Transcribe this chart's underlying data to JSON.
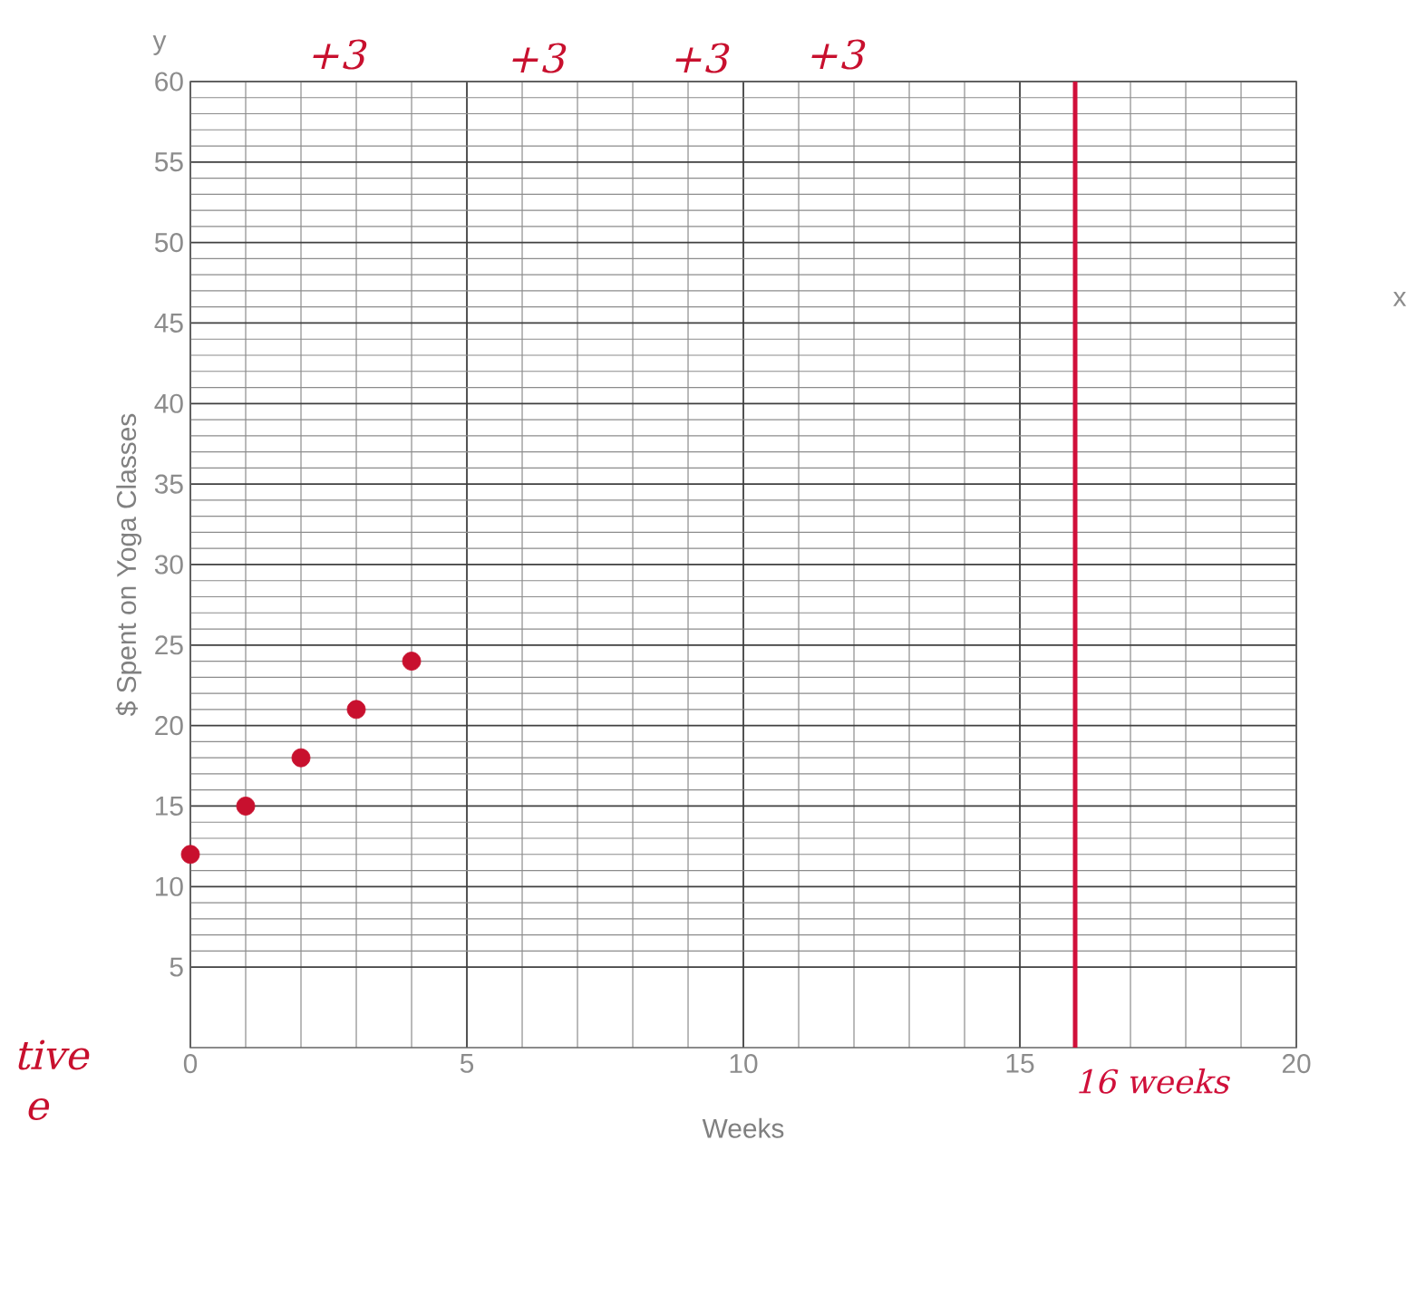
{
  "chart_data": {
    "type": "scatter",
    "xlabel": "Weeks",
    "ylabel": "$ Spent on Yoga Classes",
    "x": [
      0,
      1,
      2,
      3,
      4
    ],
    "values": [
      12,
      15,
      18,
      21,
      24
    ],
    "color": "#c8102e",
    "xlim": [
      0,
      20
    ],
    "ylim": [
      0,
      60
    ],
    "xticks": [
      0,
      5,
      10,
      15,
      20
    ],
    "yticks": [
      5,
      10,
      15,
      20,
      25,
      30,
      35,
      40,
      45,
      50,
      55,
      60
    ],
    "grid": true,
    "ref_lines": [
      {
        "axis": "x",
        "value": 16,
        "label": "16 weeks",
        "color": "#d0103a"
      }
    ],
    "annotations": [
      "+3",
      "+3",
      "+3",
      "+3",
      "x",
      "y",
      "tive",
      "e"
    ]
  }
}
